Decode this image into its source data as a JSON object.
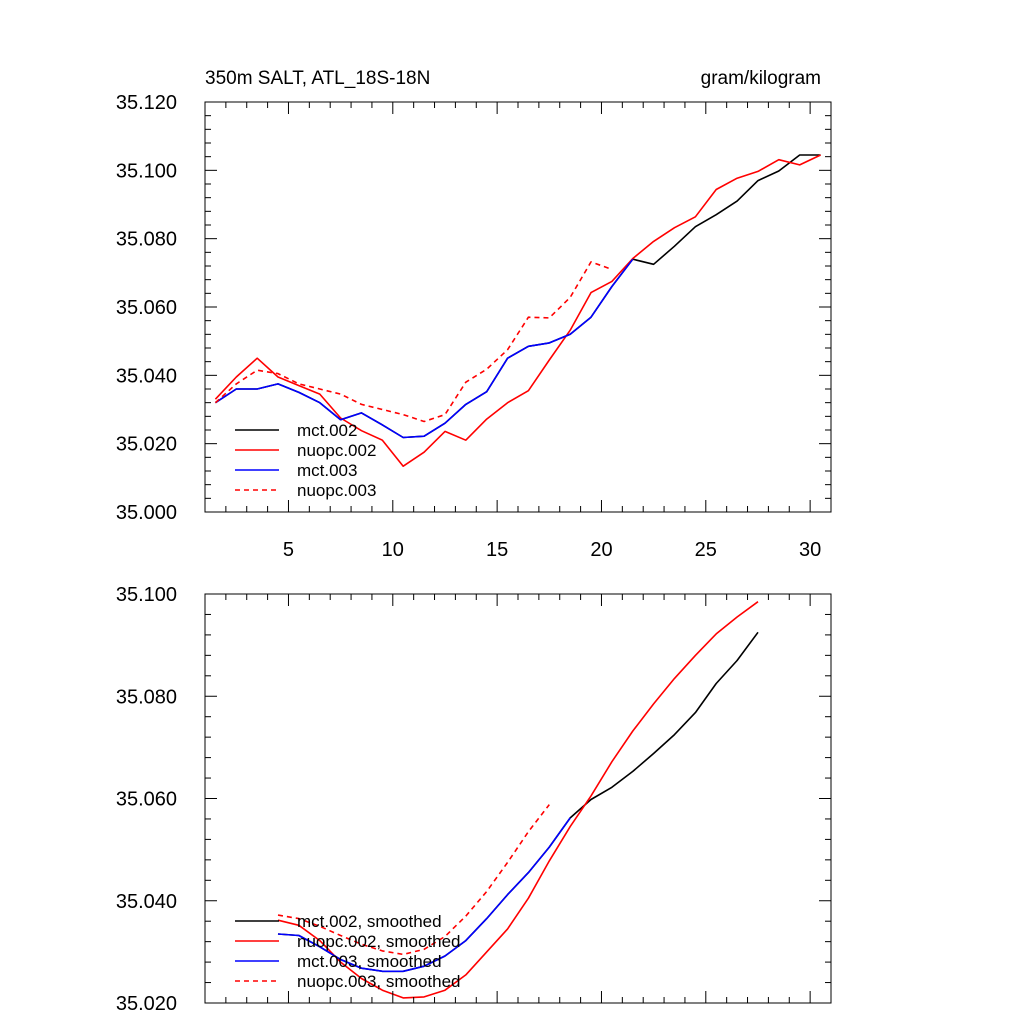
{
  "chart_data": [
    {
      "type": "line",
      "title_left": "350m SALT, ATL_18S-18N",
      "title_right": "gram/kilogram",
      "xlabel": "",
      "ylabel": "",
      "xlim": [
        1,
        31
      ],
      "ylim": [
        35.0,
        35.12
      ],
      "x_ticks": [
        5,
        10,
        15,
        20,
        25,
        30
      ],
      "x_tick_labels": [
        "5",
        "10",
        "15",
        "20",
        "25",
        "30"
      ],
      "y_ticks": [
        35.0,
        35.02,
        35.04,
        35.06,
        35.08,
        35.1,
        35.12
      ],
      "y_tick_labels": [
        "35.000",
        "35.020",
        "35.040",
        "35.060",
        "35.080",
        "35.100",
        "35.120"
      ],
      "legend": {
        "position": "bottom-left"
      },
      "series": [
        {
          "name": "mct.002",
          "color": "#000000",
          "dash": "solid",
          "x": [
            1.5,
            2.5,
            3.5,
            4.5,
            5.5,
            6.5,
            7.5,
            8.5,
            9.5,
            10.5,
            11.5,
            12.5,
            13.5,
            14.5,
            15.5,
            16.5,
            17.5,
            18.5,
            19.5,
            20.5,
            21.5,
            22.5,
            23.5,
            24.5,
            25.5,
            26.5,
            27.5,
            28.5,
            29.5,
            30.5
          ],
          "y": [
            35.032,
            35.036,
            35.036,
            35.0375,
            35.035,
            35.032,
            35.027,
            35.029,
            35.0255,
            35.0218,
            35.0222,
            35.026,
            35.0315,
            35.0352,
            35.045,
            35.0485,
            35.0495,
            35.052,
            35.057,
            35.066,
            35.074,
            35.0725,
            35.0778,
            35.0835,
            35.087,
            35.091,
            35.097,
            35.0998,
            35.1045,
            35.1045
          ]
        },
        {
          "name": "nuopc.002",
          "color": "#ff0000",
          "dash": "solid",
          "x": [
            1.5,
            2.5,
            3.5,
            4.5,
            5.5,
            6.5,
            7.5,
            8.5,
            9.5,
            10.5,
            11.5,
            12.5,
            13.5,
            14.5,
            15.5,
            16.5,
            17.5,
            18.5,
            19.5,
            20.5,
            21.5,
            22.5,
            23.5,
            24.5,
            25.5,
            26.5,
            27.5,
            28.5,
            29.5,
            30.5
          ],
          "y": [
            35.033,
            35.0395,
            35.045,
            35.0395,
            35.037,
            35.0345,
            35.0275,
            35.0238,
            35.021,
            35.0134,
            35.0175,
            35.0236,
            35.021,
            35.0272,
            35.032,
            35.0355,
            35.0445,
            35.0532,
            35.0642,
            35.0675,
            35.0742,
            35.0792,
            35.0832,
            35.0864,
            35.0944,
            35.0977,
            35.0997,
            35.1031,
            35.1016,
            35.1045
          ]
        },
        {
          "name": "mct.003",
          "color": "#0000ff",
          "dash": "solid",
          "x": [
            1.5,
            2.5,
            3.5,
            4.5,
            5.5,
            6.5,
            7.5,
            8.5,
            9.5,
            10.5,
            11.5,
            12.5,
            13.5,
            14.5,
            15.5,
            16.5,
            17.5,
            18.5,
            19.5,
            20.5,
            21.5
          ],
          "y": [
            35.032,
            35.036,
            35.036,
            35.0375,
            35.035,
            35.032,
            35.027,
            35.029,
            35.0255,
            35.0218,
            35.0222,
            35.026,
            35.0315,
            35.0352,
            35.045,
            35.0485,
            35.0495,
            35.052,
            35.057,
            35.066,
            35.074
          ]
        },
        {
          "name": "nuopc.003",
          "color": "#ff0000",
          "dash": "dashed",
          "x": [
            1.5,
            2.5,
            3.5,
            4.5,
            5.5,
            6.5,
            7.5,
            8.5,
            9.5,
            10.5,
            11.5,
            12.5,
            13.5,
            14.5,
            15.5,
            16.5,
            17.5,
            18.5,
            19.5,
            20.5
          ],
          "y": [
            35.032,
            35.0375,
            35.0415,
            35.0405,
            35.0375,
            35.036,
            35.0345,
            35.0315,
            35.03,
            35.0285,
            35.0265,
            35.0285,
            35.038,
            35.0418,
            35.0475,
            35.057,
            35.0568,
            35.0628,
            35.0732,
            35.071
          ]
        }
      ]
    },
    {
      "type": "line",
      "title_left": "",
      "title_right": "",
      "xlabel": "",
      "ylabel": "",
      "xlim": [
        1,
        31
      ],
      "ylim": [
        35.02,
        35.1
      ],
      "x_ticks": [
        5,
        10,
        15,
        20,
        25,
        30
      ],
      "x_tick_labels": [],
      "y_ticks": [
        35.02,
        35.04,
        35.06,
        35.08,
        35.1
      ],
      "y_tick_labels": [
        "35.020",
        "35.040",
        "35.060",
        "35.080",
        "35.100"
      ],
      "legend": {
        "position": "bottom-left"
      },
      "series": [
        {
          "name": "mct.002, smoothed",
          "color": "#000000",
          "dash": "solid",
          "x": [
            4.5,
            5.5,
            6.5,
            7.5,
            8.5,
            9.5,
            10.5,
            11.5,
            12.5,
            13.5,
            14.5,
            15.5,
            16.5,
            17.5,
            18.5,
            19.5,
            20.5,
            21.5,
            22.5,
            23.5,
            24.5,
            25.5,
            26.5,
            27.5
          ],
          "y": [
            35.0335,
            35.0332,
            35.031,
            35.0285,
            35.0268,
            35.0262,
            35.0262,
            35.0272,
            35.0292,
            35.0322,
            35.0365,
            35.0412,
            35.0455,
            35.0505,
            35.0562,
            35.0598,
            35.0622,
            35.0653,
            35.0688,
            35.0725,
            35.0768,
            35.0825,
            35.087,
            35.0925
          ]
        },
        {
          "name": "nuopc.002, smoothed",
          "color": "#ff0000",
          "dash": "solid",
          "x": [
            4.5,
            5.5,
            6.5,
            7.5,
            8.5,
            9.5,
            10.5,
            11.5,
            12.5,
            13.5,
            14.5,
            15.5,
            16.5,
            17.5,
            18.5,
            19.5,
            20.5,
            21.5,
            22.5,
            23.5,
            24.5,
            25.5,
            26.5,
            27.5
          ],
          "y": [
            35.0362,
            35.0352,
            35.0322,
            35.028,
            35.0248,
            35.0225,
            35.021,
            35.0212,
            35.0225,
            35.0255,
            35.03,
            35.0345,
            35.0405,
            35.0478,
            35.0545,
            35.0605,
            35.0672,
            35.0732,
            35.0785,
            35.0835,
            35.088,
            35.0922,
            35.0955,
            35.0985
          ]
        },
        {
          "name": "mct.003, smoothed",
          "color": "#0000ff",
          "dash": "solid",
          "x": [
            4.5,
            5.5,
            6.5,
            7.5,
            8.5,
            9.5,
            10.5,
            11.5,
            12.5,
            13.5,
            14.5,
            15.5,
            16.5,
            17.5,
            18.5
          ],
          "y": [
            35.0335,
            35.0332,
            35.031,
            35.0285,
            35.0268,
            35.0262,
            35.0262,
            35.0272,
            35.0292,
            35.0322,
            35.0365,
            35.0412,
            35.0455,
            35.0505,
            35.0562
          ]
        },
        {
          "name": "nuopc.003, smoothed",
          "color": "#ff0000",
          "dash": "dashed",
          "x": [
            4.5,
            5.5,
            6.5,
            7.5,
            8.5,
            9.5,
            10.5,
            11.5,
            12.5,
            13.5,
            14.5,
            15.5,
            16.5,
            17.5
          ],
          "y": [
            35.0372,
            35.0365,
            35.035,
            35.0332,
            35.0315,
            35.0302,
            35.0295,
            35.0305,
            35.033,
            35.037,
            35.0418,
            35.0475,
            35.0535,
            35.0588
          ]
        }
      ]
    }
  ]
}
